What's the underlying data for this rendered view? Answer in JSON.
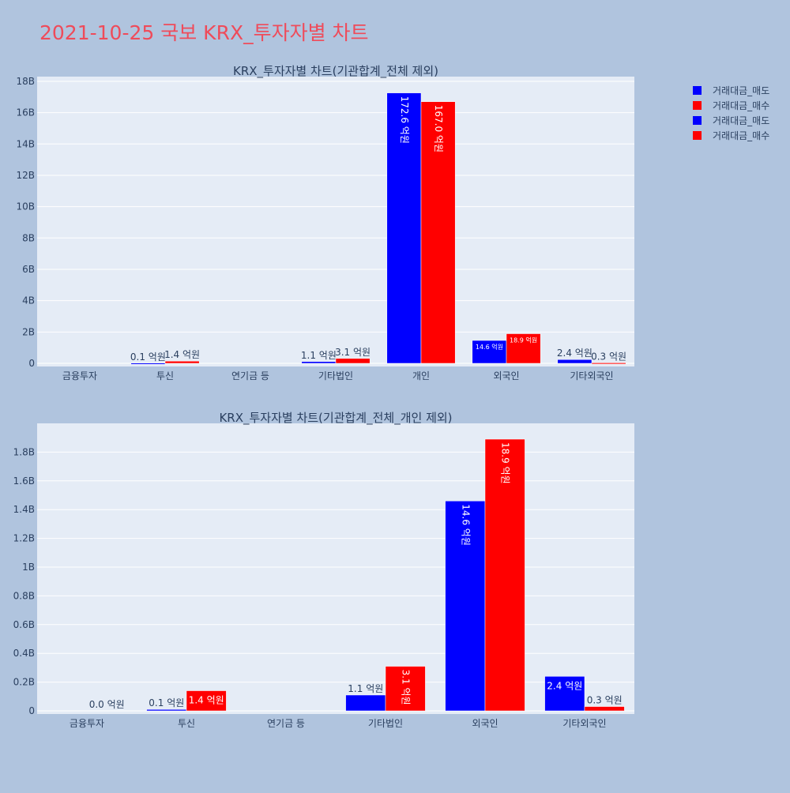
{
  "page": {
    "title": "2021-10-25 국보 KRX_투자자별 차트"
  },
  "colors": {
    "sell": "#0000ff",
    "buy": "#ff0000",
    "plot_bg": "#e5ecf6",
    "page_bg": "#b0c4de",
    "grid": "#ffffff",
    "text": "#2a3f5f"
  },
  "legend": {
    "placement": "top-right",
    "items": [
      {
        "label": "거래대금_매도",
        "color": "#0000ff"
      },
      {
        "label": "거래대금_매수",
        "color": "#ff0000"
      },
      {
        "label": "거래대금_매도",
        "color": "#0000ff"
      },
      {
        "label": "거래대금_매수",
        "color": "#ff0000"
      }
    ]
  },
  "chart_data": [
    {
      "type": "bar",
      "title": "KRX_투자자별 차트(기관합계_전체 제외)",
      "categories": [
        "금융투자",
        "투신",
        "연기금 등",
        "기타법인",
        "개인",
        "외국인",
        "기타외국인"
      ],
      "ylim": [
        0,
        18300000000
      ],
      "yticks": [
        0,
        2000000000,
        4000000000,
        6000000000,
        8000000000,
        10000000000,
        12000000000,
        14000000000,
        16000000000,
        18000000000
      ],
      "yticklabels": [
        "0",
        "2B",
        "4B",
        "6B",
        "8B",
        "10B",
        "12B",
        "14B",
        "16B",
        "18B"
      ],
      "grid": true,
      "series": [
        {
          "name": "거래대금_매도",
          "color": "#0000ff",
          "values": [
            0,
            10000000,
            0,
            110000000,
            17260000000,
            1460000000,
            240000000
          ],
          "labels": [
            "",
            "0.1 억원",
            "",
            "1.1 억원",
            "172.6 억원",
            "14.6 억원",
            "2.4 억원"
          ],
          "label_modes": [
            "none",
            "out",
            "none",
            "out",
            "in-v",
            "in-h-small",
            "out"
          ]
        },
        {
          "name": "거래대금_매수",
          "color": "#ff0000",
          "values": [
            0,
            140000000,
            0,
            310000000,
            16700000000,
            1890000000,
            30000000
          ],
          "labels": [
            "",
            "1.4 억원",
            "",
            "3.1 억원",
            "167.0 억원",
            "18.9 억원",
            "0.3 억원"
          ],
          "label_modes": [
            "none",
            "out",
            "none",
            "out",
            "in-v",
            "in-h-small",
            "out"
          ]
        }
      ]
    },
    {
      "type": "bar",
      "title": "KRX_투자자별 차트(기관합계_전체_개인 제외)",
      "categories": [
        "금융투자",
        "투신",
        "연기금 등",
        "기타법인",
        "외국인",
        "기타외국인"
      ],
      "ylim": [
        0,
        2000000000
      ],
      "yticks": [
        0,
        200000000,
        400000000,
        600000000,
        800000000,
        1000000000,
        1200000000,
        1400000000,
        1600000000,
        1800000000
      ],
      "yticklabels": [
        "0",
        "0.2B",
        "0.4B",
        "0.6B",
        "0.8B",
        "1B",
        "1.2B",
        "1.4B",
        "1.6B",
        "1.8B"
      ],
      "grid": true,
      "series": [
        {
          "name": "거래대금_매도",
          "color": "#0000ff",
          "values": [
            0,
            10000000,
            0,
            110000000,
            1460000000,
            240000000
          ],
          "labels": [
            "",
            "0.1 억원",
            "",
            "1.1 억원",
            "14.6 억원",
            "2.4 억원"
          ],
          "label_modes": [
            "none",
            "out",
            "none",
            "out",
            "in-v",
            "in-h"
          ]
        },
        {
          "name": "거래대금_매수",
          "color": "#ff0000",
          "values": [
            0,
            140000000,
            0,
            310000000,
            1890000000,
            30000000
          ],
          "labels": [
            "0.0 억원",
            "1.4 억원",
            "",
            "3.1 억원",
            "18.9 억원",
            "0.3 억원"
          ],
          "label_modes": [
            "out",
            "in-h",
            "none",
            "in-v",
            "in-v",
            "out"
          ]
        }
      ]
    }
  ]
}
